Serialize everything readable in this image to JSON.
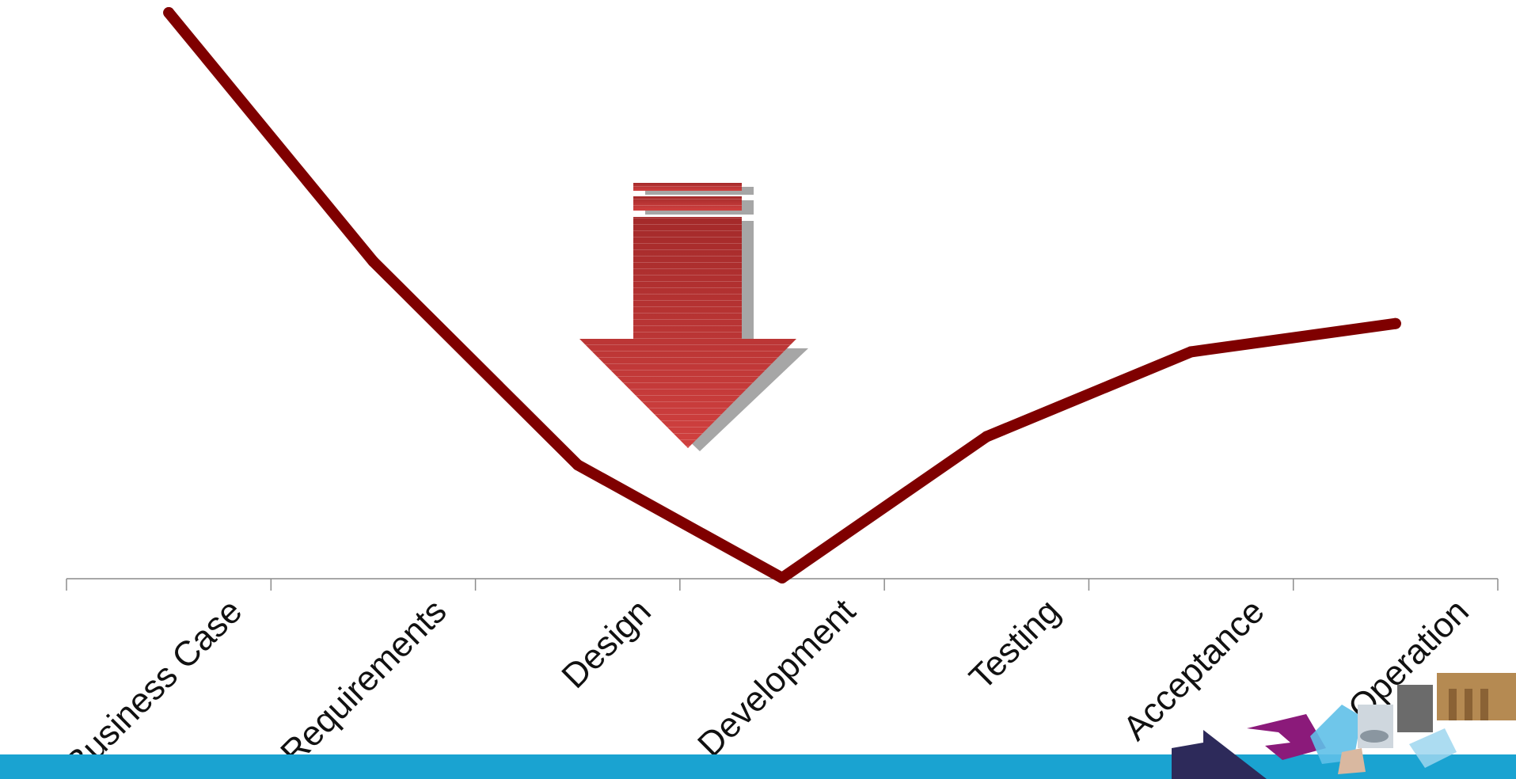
{
  "chart_data": {
    "type": "line",
    "title": "",
    "xlabel": "",
    "ylabel": "",
    "categories": [
      "Business Case",
      "Requirements",
      "Design",
      "Development",
      "Testing",
      "Acceptance",
      "Operation"
    ],
    "series": [
      {
        "values": [
          100,
          56,
          20,
          0,
          25,
          40,
          45
        ]
      }
    ],
    "ylim": [
      0,
      100
    ],
    "y_axis_visible": false,
    "grid": false,
    "legend": "none",
    "annotations": [
      "downward arrow indicating decline"
    ],
    "colors": {
      "line": "#7f0000",
      "axis": "#8c8c8c",
      "arrow": "#c0393b",
      "arrow_shadow": "#a6a6a6",
      "footer_band": "#1aa3d1",
      "logo_dark": "#2d2a5a",
      "logo_magenta": "#8b1a7a",
      "logo_light_blue": "#5fc0e8"
    }
  },
  "footer": {
    "graphic": "corporate-logo-collage"
  }
}
